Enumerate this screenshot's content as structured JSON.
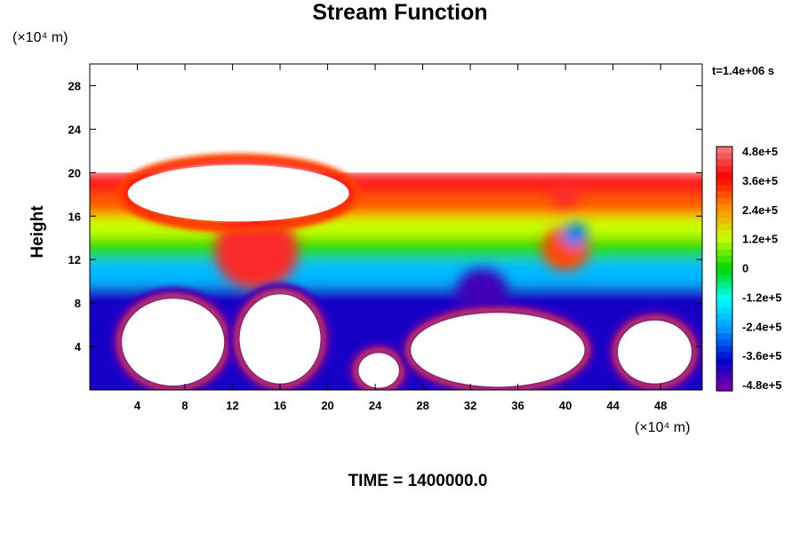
{
  "chart_data": {
    "type": "heatmap",
    "title": "Stream Function",
    "ylabel": "Height",
    "x_unit": "(×10⁴ m)",
    "y_unit": "(×10⁴ m)",
    "time_annotation": "t=1.4e+06 s",
    "footer": "TIME = 1400000.0",
    "xlim": [
      0,
      51.5
    ],
    "ylim": [
      0,
      30
    ],
    "x_ticks": [
      4,
      8,
      12,
      16,
      20,
      24,
      28,
      32,
      36,
      40,
      44,
      48
    ],
    "y_ticks": [
      4,
      8,
      12,
      16,
      20,
      24,
      28
    ],
    "colorbar": {
      "min": -480000,
      "max": 480000,
      "labels": [
        "4.8e+5",
        "3.6e+5",
        "2.4e+5",
        "1.2e+5",
        "0",
        "-1.2e+5",
        "-2.4e+5",
        "-3.6e+5",
        "-4.8e+5"
      ],
      "colors": [
        "#f08080",
        "#ff0000",
        "#ff8c00",
        "#c8ff00",
        "#00d400",
        "#00ffff",
        "#0096ff",
        "#0000d0",
        "#8000a0"
      ]
    },
    "field_top_height": 20,
    "bands": [
      {
        "level": 380000,
        "y_from": 17.5,
        "y_to": 20
      },
      {
        "level": 280000,
        "y_from": 15.5,
        "y_to": 17.5
      },
      {
        "level": 120000,
        "y_from": 13.5,
        "y_to": 15.5
      },
      {
        "level": 20000,
        "y_from": 11.5,
        "y_to": 13.5
      },
      {
        "level": -200000,
        "y_from": 9,
        "y_to": 11.5
      },
      {
        "level": -380000,
        "y_from": 0,
        "y_to": 9
      }
    ],
    "features": [
      {
        "type": "positive_cell",
        "x": 14,
        "y": 12.8,
        "r": 3.5,
        "level": 400000
      },
      {
        "type": "positive_cell",
        "x": 40,
        "y": 13,
        "r": 2,
        "level": 300000
      },
      {
        "type": "negative_cell",
        "x": 40.8,
        "y": 14.3,
        "r": 1.1,
        "level": -260000
      },
      {
        "type": "negative_cell",
        "x": 33,
        "y": 9,
        "r": 2.2,
        "level": -420000
      },
      {
        "type": "positive_cell",
        "x": 40,
        "y": 18,
        "r": 1.2,
        "level": 400000
      }
    ],
    "blanked_regions": [
      {
        "x": 12.5,
        "y": 18.1,
        "rx": 9.3,
        "ry": 2.6
      },
      {
        "x": 7,
        "y": 4.4,
        "rx": 4.3,
        "ry": 4
      },
      {
        "x": 16,
        "y": 4.7,
        "rx": 3.4,
        "ry": 4.1
      },
      {
        "x": 24.3,
        "y": 1.8,
        "rx": 1.7,
        "ry": 1.6
      },
      {
        "x": 34.3,
        "y": 3.7,
        "rx": 7.3,
        "ry": 3.4
      },
      {
        "x": 47.5,
        "y": 3.5,
        "rx": 3.1,
        "ry": 2.9
      }
    ]
  }
}
